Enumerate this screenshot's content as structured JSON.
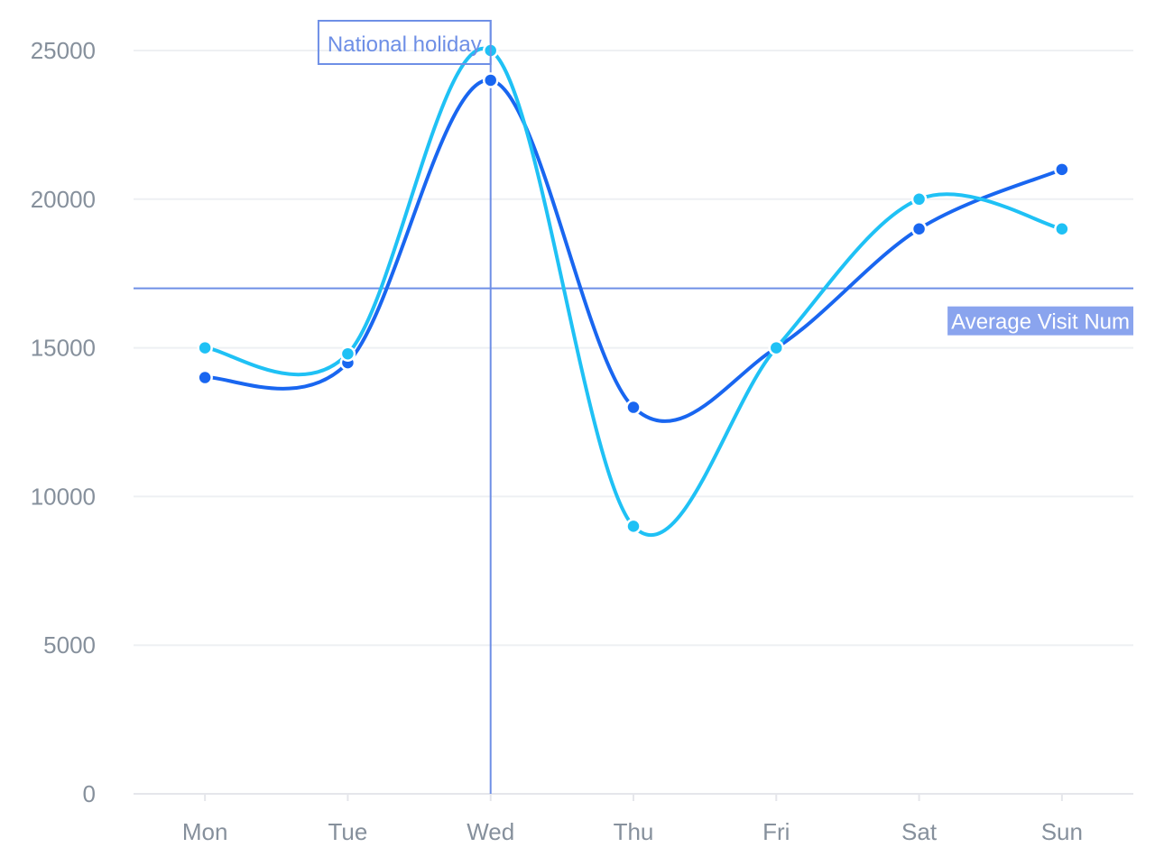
{
  "chart_data": {
    "type": "line",
    "smooth": true,
    "categories": [
      "Mon",
      "Tue",
      "Wed",
      "Thu",
      "Fri",
      "Sat",
      "Sun"
    ],
    "series": [
      {
        "values": [
          14000,
          14500,
          24000,
          13000,
          15000,
          19000,
          21000
        ],
        "color": "#1966f0"
      },
      {
        "values": [
          15000,
          14800,
          25000,
          9000,
          15000,
          20000,
          19000
        ],
        "color": "#1fc1f5"
      }
    ],
    "ylim": [
      0,
      25000
    ],
    "yticks": [
      0,
      5000,
      10000,
      15000,
      20000,
      25000
    ],
    "grid": true,
    "markers": {
      "vertical": {
        "category": "Wed",
        "label": "National holiday",
        "color": "#6e8fe6"
      },
      "horizontal": {
        "value": 17000,
        "label": "Average Visit Num",
        "color": "#6e8fe6",
        "label_bg": "#8aa4ee"
      }
    },
    "axis_color": "#e5e6eb",
    "grid_color": "#eef0f3",
    "tick_color": "#86909c"
  }
}
